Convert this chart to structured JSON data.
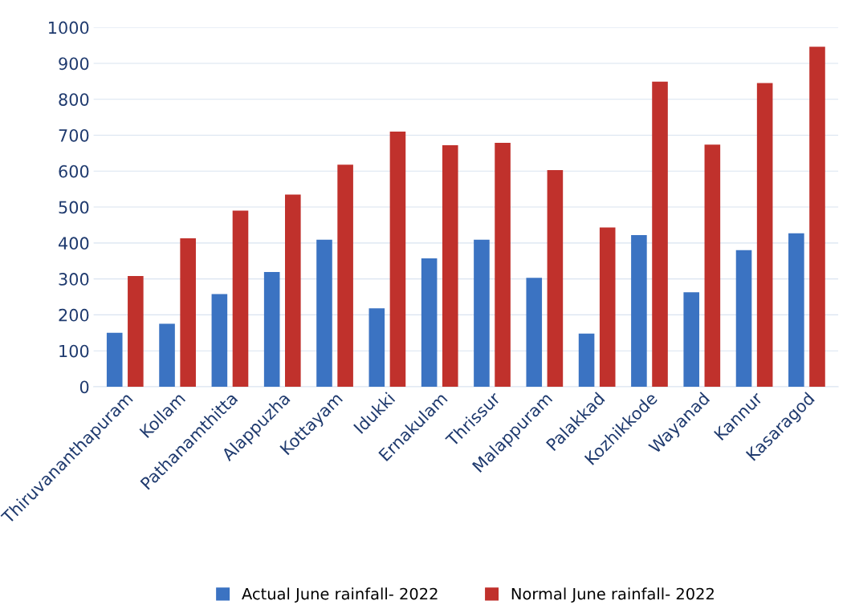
{
  "chart_data": {
    "type": "bar",
    "categories": [
      "Thiruvananthapuram",
      "Kollam",
      "Pathanamthitta",
      "Alappuzha",
      "Kottayam",
      "Idukki",
      "Ernakulam",
      "Thrissur",
      "Malappuram",
      "Palakkad",
      "Kozhikkode",
      "Wayanad",
      "Kannur",
      "Kasaragod"
    ],
    "series": [
      {
        "name": "Actual June rainfall- 2022",
        "color": "#3b73c2",
        "values": [
          150,
          175,
          258,
          319,
          409,
          218,
          357,
          409,
          303,
          148,
          422,
          263,
          380,
          427
        ]
      },
      {
        "name": "Normal June rainfall- 2022",
        "color": "#c0312c",
        "values": [
          308,
          413,
          490,
          535,
          618,
          710,
          672,
          679,
          603,
          443,
          849,
          674,
          845,
          946
        ]
      }
    ],
    "ylim": [
      0,
      1000
    ],
    "yticks": [
      0,
      100,
      200,
      300,
      400,
      500,
      600,
      700,
      800,
      900,
      1000
    ],
    "grid": "y",
    "legend": "bottom"
  }
}
